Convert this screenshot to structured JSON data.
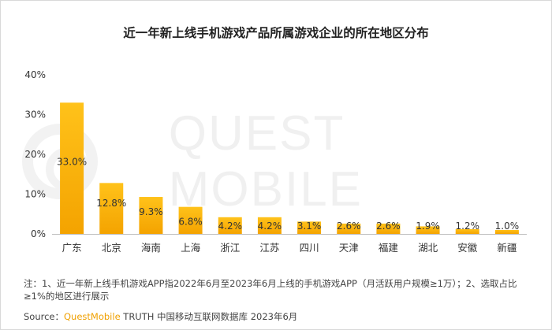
{
  "colors": {
    "bar_top": "#ffc21a",
    "bar_bottom": "#f4a300",
    "brand": "#f0a000",
    "axis": "#bfbfbf",
    "text": "#333333"
  },
  "watermark": {
    "text": "QUEST MOBILE",
    "icon": "quest-mobile-logo-icon"
  },
  "chart_data": {
    "type": "bar",
    "title": "近一年新上线手机游戏产品所属游戏企业的所在地区分布",
    "xlabel": "",
    "ylabel": "",
    "ylim": [
      0,
      40
    ],
    "yticks": [
      "0%",
      "10%",
      "20%",
      "30%",
      "40%"
    ],
    "ytick_values": [
      0,
      10,
      20,
      30,
      40
    ],
    "categories": [
      "广东",
      "北京",
      "海南",
      "上海",
      "浙江",
      "江苏",
      "四川",
      "天津",
      "福建",
      "湖北",
      "安徽",
      "新疆"
    ],
    "values": [
      33.0,
      12.8,
      9.3,
      6.8,
      4.2,
      4.2,
      3.1,
      2.6,
      2.6,
      1.9,
      1.2,
      1.0
    ],
    "value_labels": [
      "33.0%",
      "12.8%",
      "9.3%",
      "6.8%",
      "4.2%",
      "4.2%",
      "3.1%",
      "2.6%",
      "2.6%",
      "1.9%",
      "1.2%",
      "1.0%"
    ],
    "grid": false,
    "legend": "none"
  },
  "note": "注：1、近一年新上线手机游戏APP指2022年6月至2023年6月上线的手机游戏APP（月活跃用户规模≥1万）；2、选取占比≥1%的地区进行展示",
  "source": {
    "prefix": "Source：",
    "brand": "QuestMobile",
    "rest": " TRUTH 中国移动互联网数据库 2023年6月"
  }
}
